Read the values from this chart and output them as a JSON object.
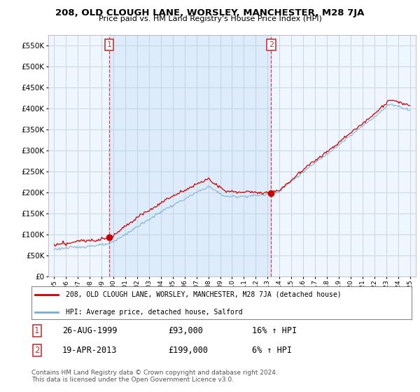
{
  "title": "208, OLD CLOUGH LANE, WORSLEY, MANCHESTER, M28 7JA",
  "subtitle": "Price paid vs. HM Land Registry's House Price Index (HPI)",
  "footer": "Contains HM Land Registry data © Crown copyright and database right 2024.\nThis data is licensed under the Open Government Licence v3.0.",
  "legend_line1": "208, OLD CLOUGH LANE, WORSLEY, MANCHESTER, M28 7JA (detached house)",
  "legend_line2": "HPI: Average price, detached house, Salford",
  "sale1_date": "26-AUG-1999",
  "sale1_price": "£93,000",
  "sale1_hpi": "16% ↑ HPI",
  "sale2_date": "19-APR-2013",
  "sale2_price": "£199,000",
  "sale2_hpi": "6% ↑ HPI",
  "red_color": "#cc0000",
  "blue_color": "#7aaecc",
  "shade_color": "#ddeeff",
  "grid_color": "#ccddee",
  "ylim": [
    0,
    575000
  ],
  "yticks": [
    0,
    50000,
    100000,
    150000,
    200000,
    250000,
    300000,
    350000,
    400000,
    450000,
    500000,
    550000
  ],
  "background_color": "#ffffff",
  "sale1_yr": 1999.63,
  "sale2_yr": 2013.29,
  "xstart_year": 1995,
  "xend_year": 2025
}
